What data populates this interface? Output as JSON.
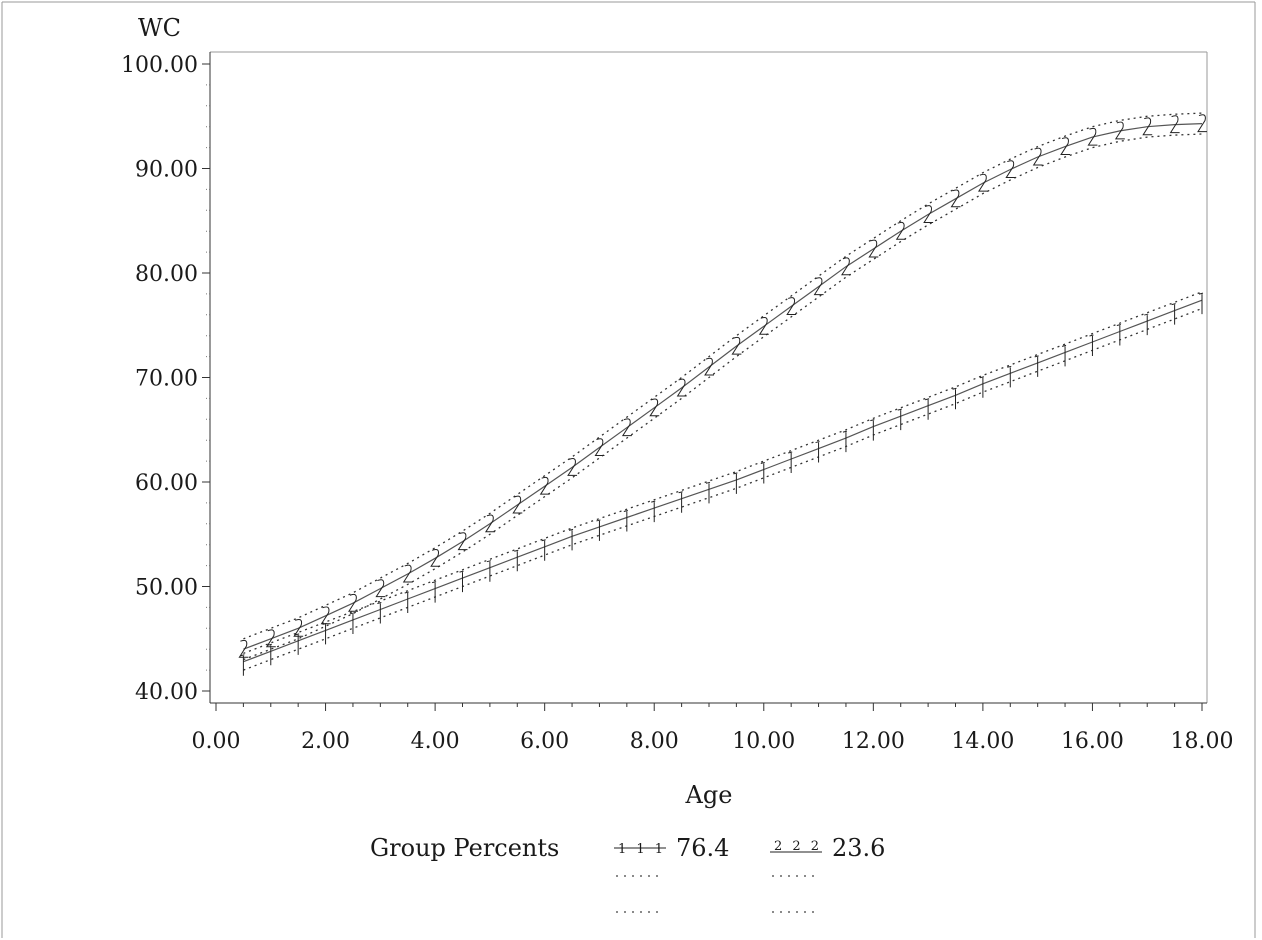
{
  "chart_data": {
    "type": "line",
    "ylabel": "WC",
    "xlabel": "Age",
    "xlim": [
      0,
      18
    ],
    "ylim": [
      40,
      100
    ],
    "x_ticks": [
      "0.00",
      "2.00",
      "4.00",
      "6.00",
      "8.00",
      "10.00",
      "12.00",
      "14.00",
      "16.00",
      "18.00"
    ],
    "y_ticks": [
      "40.00",
      "50.00",
      "60.00",
      "70.00",
      "80.00",
      "90.00",
      "100.00"
    ],
    "x": [
      0.5,
      1.0,
      1.5,
      2.0,
      2.5,
      3.0,
      3.5,
      4.0,
      4.5,
      5.0,
      5.5,
      6.0,
      6.5,
      7.0,
      7.5,
      8.0,
      8.5,
      9.0,
      9.5,
      10.0,
      10.5,
      11.0,
      11.5,
      12.0,
      12.5,
      13.0,
      13.5,
      14.0,
      14.5,
      15.0,
      15.5,
      16.0,
      16.5,
      17.0,
      17.5,
      18.0
    ],
    "series": [
      {
        "symbol": "1",
        "values": [
          42.8,
          43.8,
          44.8,
          45.8,
          46.8,
          47.8,
          48.8,
          49.8,
          50.8,
          51.8,
          52.8,
          53.8,
          54.8,
          55.7,
          56.6,
          57.5,
          58.4,
          59.3,
          60.2,
          61.2,
          62.2,
          63.2,
          64.2,
          65.3,
          66.3,
          67.3,
          68.3,
          69.4,
          70.4,
          71.4,
          72.4,
          73.4,
          74.4,
          75.4,
          76.4,
          77.4
        ],
        "ci_offset": 0.8
      },
      {
        "symbol": "2",
        "values": [
          44.0,
          45.0,
          46.0,
          47.2,
          48.4,
          49.8,
          51.2,
          52.7,
          54.3,
          56.0,
          57.8,
          59.6,
          61.4,
          63.3,
          65.2,
          67.1,
          69.0,
          71.0,
          73.0,
          74.9,
          76.8,
          78.7,
          80.6,
          82.3,
          84.0,
          85.6,
          87.1,
          88.6,
          89.9,
          91.1,
          92.1,
          93.0,
          93.6,
          94.0,
          94.2,
          94.3
        ],
        "ci_offset": 1.0
      }
    ],
    "legend": {
      "title": "Group Percents",
      "entries": [
        {
          "symbol": "1 1 1",
          "label": "76.4"
        },
        {
          "symbol": "2 2 2",
          "label": "23.6"
        }
      ],
      "placement": "bottom-center"
    },
    "grid": false
  }
}
